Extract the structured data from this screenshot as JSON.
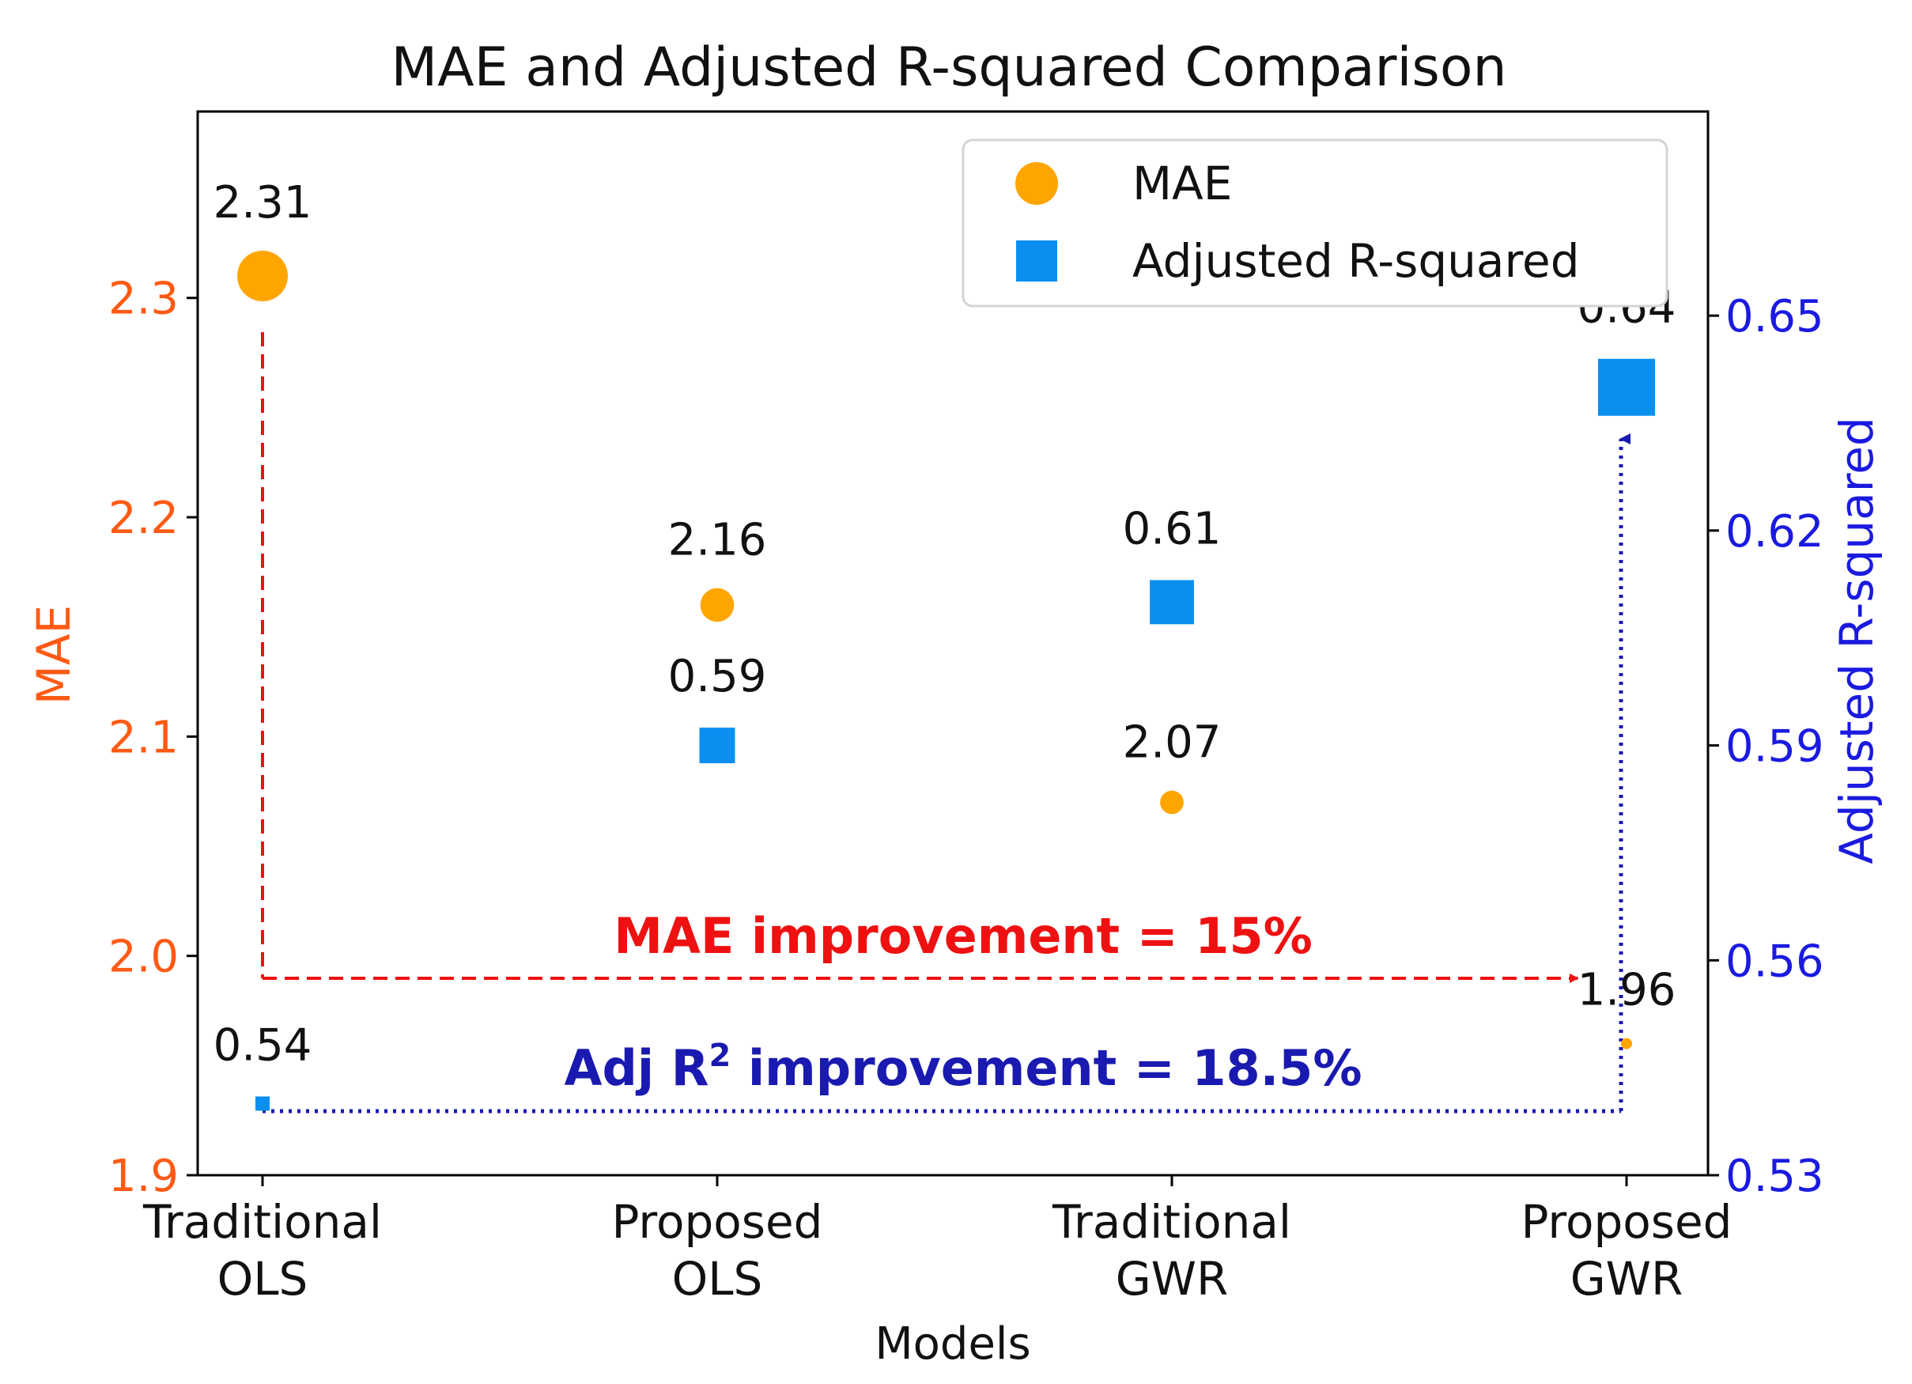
{
  "chart_data": {
    "type": "scatter",
    "title": "MAE and Adjusted R-squared Comparison",
    "xlabel": "Models",
    "ylabel_left": "MAE",
    "ylabel_right": "Adjusted R-squared",
    "categories": [
      {
        "line1": "Traditional",
        "line2": "OLS"
      },
      {
        "line1": "Proposed",
        "line2": "OLS"
      },
      {
        "line1": "Traditional",
        "line2": "GWR"
      },
      {
        "line1": "Proposed",
        "line2": "GWR"
      }
    ],
    "ylim_left": [
      1.9,
      2.385
    ],
    "ylim_right": [
      0.53,
      0.6785
    ],
    "yticks_left": [
      "1.9",
      "2.0",
      "2.1",
      "2.2",
      "2.3"
    ],
    "yticks_right": [
      "0.53",
      "0.56",
      "0.59",
      "0.62",
      "0.65"
    ],
    "grid": false,
    "legend_position": "top-right",
    "series": [
      {
        "name": "MAE",
        "marker": "circle",
        "axis": "left",
        "color": "#FFA500",
        "values": [
          2.31,
          2.16,
          2.07,
          1.96
        ],
        "labels": [
          "2.31",
          "2.16",
          "2.07",
          "1.96"
        ]
      },
      {
        "name": "Adjusted R-squared",
        "marker": "square",
        "axis": "right",
        "color": "#0A8FF0",
        "values": [
          0.54,
          0.59,
          0.61,
          0.64
        ],
        "labels": [
          "0.54",
          "0.59",
          "0.61",
          "0.64"
        ]
      }
    ],
    "annotations": [
      {
        "text": "MAE improvement = 15%",
        "color": "#EE1111"
      },
      {
        "text_main": "Adj R",
        "text_sup": "2",
        "text_rest": " improvement = 18.5%",
        "color": "#1A1AB0"
      }
    ]
  }
}
